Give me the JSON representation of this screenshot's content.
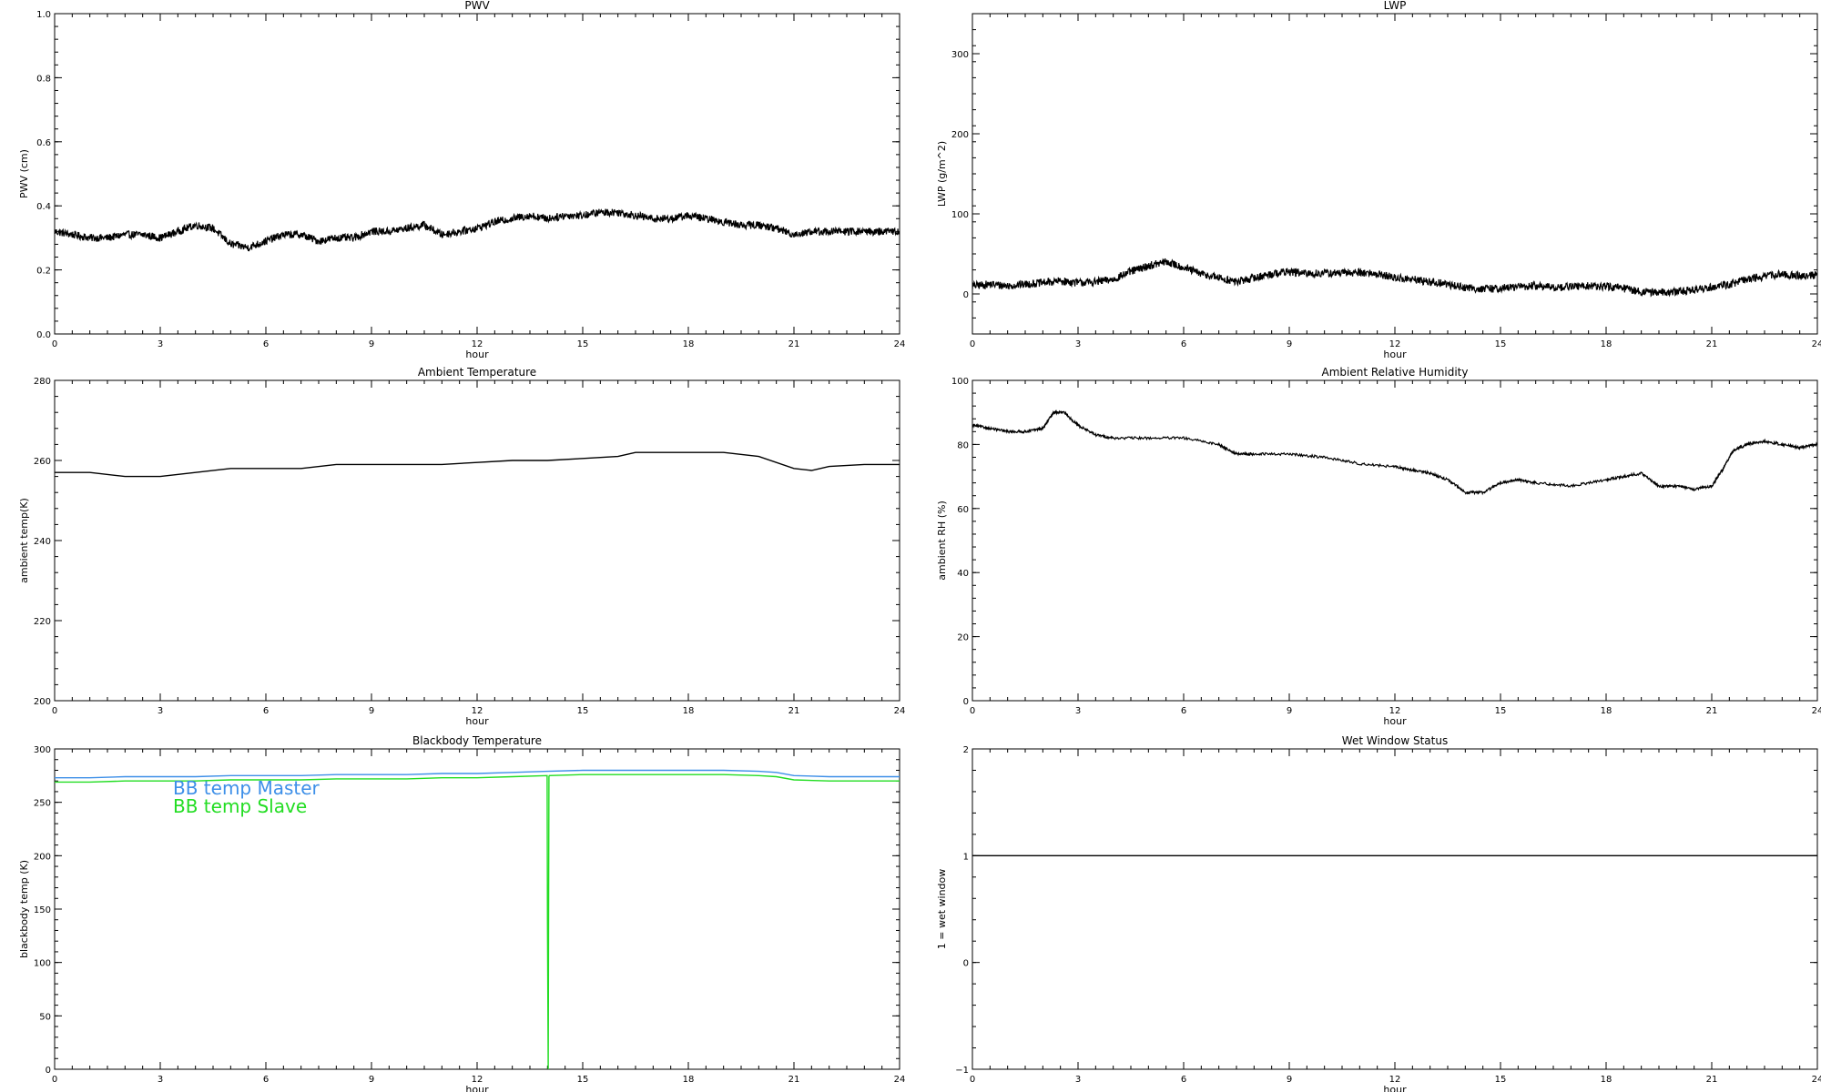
{
  "chart_data": [
    {
      "type": "line",
      "title": "PWV",
      "xlabel": "hour",
      "ylabel": "PWV (cm)",
      "xlim": [
        0,
        24
      ],
      "ylim": [
        0.0,
        1.0
      ],
      "xticks": [
        "0",
        "3",
        "6",
        "9",
        "12",
        "15",
        "18",
        "21",
        "24"
      ],
      "yticks": [
        "0.0",
        "0.2",
        "0.4",
        "0.6",
        "0.8",
        "1.0"
      ],
      "color": "#000000",
      "grid": false,
      "series": [
        {
          "x": [
            0,
            0.5,
            1,
            1.5,
            2,
            2.5,
            3,
            3.5,
            4,
            4.5,
            5,
            5.5,
            6,
            6.5,
            7,
            7.5,
            8,
            8.5,
            9,
            9.5,
            10,
            10.5,
            11,
            11.5,
            12,
            12.5,
            13,
            13.5,
            14,
            14.5,
            15,
            15.5,
            16,
            16.5,
            17,
            17.5,
            18,
            18.5,
            19,
            19.5,
            20,
            20.5,
            21,
            21.5,
            22,
            22.5,
            23,
            23.5,
            24
          ],
          "values": [
            0.32,
            0.31,
            0.3,
            0.3,
            0.31,
            0.31,
            0.3,
            0.32,
            0.34,
            0.33,
            0.28,
            0.27,
            0.29,
            0.31,
            0.31,
            0.29,
            0.3,
            0.3,
            0.32,
            0.32,
            0.33,
            0.34,
            0.31,
            0.32,
            0.33,
            0.35,
            0.36,
            0.37,
            0.36,
            0.37,
            0.37,
            0.38,
            0.38,
            0.37,
            0.36,
            0.36,
            0.37,
            0.36,
            0.35,
            0.34,
            0.34,
            0.33,
            0.31,
            0.32,
            0.32,
            0.32,
            0.32,
            0.32,
            0.32
          ]
        }
      ]
    },
    {
      "type": "line",
      "title": "LWP",
      "xlabel": "hour",
      "ylabel": "LWP (g/m^2)",
      "xlim": [
        0,
        24
      ],
      "ylim": [
        -50,
        350
      ],
      "xticks": [
        "0",
        "3",
        "6",
        "9",
        "12",
        "15",
        "18",
        "21",
        "24"
      ],
      "yticks": [
        "0",
        "100",
        "200",
        "300"
      ],
      "color": "#000000",
      "grid": false,
      "series": [
        {
          "x": [
            0,
            0.5,
            1,
            1.5,
            2,
            2.5,
            3,
            3.5,
            4,
            4.5,
            5,
            5.5,
            6,
            6.5,
            7,
            7.5,
            8,
            8.5,
            9,
            9.5,
            10,
            10.5,
            11,
            11.5,
            12,
            12.5,
            13,
            13.5,
            14,
            14.5,
            15,
            15.5,
            16,
            16.5,
            17,
            17.5,
            18,
            18.5,
            19,
            19.5,
            20,
            20.5,
            21,
            21.5,
            22,
            22.5,
            23,
            23.5,
            24
          ],
          "values": [
            10,
            12,
            10,
            12,
            14,
            16,
            14,
            15,
            18,
            28,
            35,
            40,
            33,
            25,
            20,
            15,
            20,
            25,
            28,
            25,
            26,
            26,
            27,
            25,
            20,
            18,
            15,
            12,
            8,
            6,
            7,
            9,
            10,
            8,
            9,
            10,
            9,
            7,
            3,
            2,
            3,
            5,
            9,
            12,
            18,
            22,
            25,
            22,
            24
          ]
        }
      ]
    },
    {
      "type": "line",
      "title": "Ambient Temperature",
      "xlabel": "hour",
      "ylabel": "ambient temp(K)",
      "xlim": [
        0,
        24
      ],
      "ylim": [
        200,
        280
      ],
      "xticks": [
        "0",
        "3",
        "6",
        "9",
        "12",
        "15",
        "18",
        "21",
        "24"
      ],
      "yticks": [
        "200",
        "220",
        "240",
        "260",
        "280"
      ],
      "color": "#000000",
      "grid": false,
      "series": [
        {
          "x": [
            0,
            1,
            2,
            3,
            4,
            5,
            6,
            7,
            8,
            9,
            10,
            11,
            12,
            13,
            14,
            15,
            16,
            16.5,
            17,
            18,
            19,
            20,
            21,
            21.5,
            22,
            23,
            24
          ],
          "values": [
            257,
            257,
            256,
            256,
            257,
            258,
            258,
            258,
            259,
            259,
            259,
            259,
            259.5,
            260,
            260,
            260.5,
            261,
            262,
            262,
            262,
            262,
            261,
            258,
            257.5,
            258.5,
            259,
            259
          ]
        }
      ]
    },
    {
      "type": "line",
      "title": "Ambient Relative Humidity",
      "xlabel": "hour",
      "ylabel": "ambient RH (%)",
      "xlim": [
        0,
        24
      ],
      "ylim": [
        0,
        100
      ],
      "xticks": [
        "0",
        "3",
        "6",
        "9",
        "12",
        "15",
        "18",
        "21",
        "24"
      ],
      "yticks": [
        "0",
        "20",
        "40",
        "60",
        "80",
        "100"
      ],
      "color": "#000000",
      "grid": false,
      "series": [
        {
          "x": [
            0,
            0.5,
            1,
            1.5,
            2,
            2.3,
            2.6,
            3,
            3.5,
            4,
            5,
            6,
            7,
            7.5,
            8,
            9,
            10,
            11,
            12,
            12.5,
            13,
            13.5,
            14,
            14.5,
            15,
            15.5,
            16,
            17,
            18,
            18.5,
            19,
            19.5,
            20,
            20.5,
            21,
            21.3,
            21.6,
            22,
            22.5,
            23,
            23.5,
            24
          ],
          "values": [
            86,
            85,
            84,
            84,
            85,
            90,
            90,
            86,
            83,
            82,
            82,
            82,
            80,
            77,
            77,
            77,
            76,
            74,
            73,
            72,
            71,
            69,
            65,
            65,
            68,
            69,
            68,
            67,
            69,
            70,
            71,
            67,
            67,
            66,
            67,
            72,
            78,
            80,
            81,
            80,
            79,
            80
          ]
        }
      ]
    },
    {
      "type": "line",
      "title": "Blackbody Temperature",
      "xlabel": "hour",
      "ylabel": "blackbody temp (K)",
      "xlim": [
        0,
        24
      ],
      "ylim": [
        0,
        300
      ],
      "xticks": [
        "0",
        "3",
        "6",
        "9",
        "12",
        "15",
        "18",
        "21",
        "24"
      ],
      "yticks": [
        "0",
        "50",
        "100",
        "150",
        "200",
        "250",
        "300"
      ],
      "grid": false,
      "legend_position": "top-left",
      "series": [
        {
          "name": "BB temp Master",
          "color": "#3d8fe8",
          "x": [
            0,
            1,
            2,
            3,
            4,
            5,
            6,
            7,
            8,
            9,
            10,
            11,
            12,
            13,
            14,
            15,
            16,
            17,
            18,
            19,
            20,
            20.5,
            21,
            22,
            23,
            24
          ],
          "values": [
            273,
            273,
            274,
            274,
            274,
            275,
            275,
            275,
            276,
            276,
            276,
            277,
            277,
            278,
            279,
            280,
            280,
            280,
            280,
            280,
            279,
            278,
            275,
            274,
            274,
            274
          ]
        },
        {
          "name": "BB temp Slave",
          "color": "#22dd22",
          "x": [
            0,
            1,
            2,
            3,
            4,
            5,
            6,
            7,
            8,
            9,
            10,
            11,
            12,
            13,
            13.99,
            14.0,
            14.02,
            14.04,
            14.05,
            15,
            16,
            17,
            18,
            19,
            20,
            20.5,
            21,
            22,
            23,
            24
          ],
          "values": [
            269,
            269,
            270,
            270,
            270,
            271,
            271,
            271,
            272,
            272,
            272,
            273,
            273,
            274,
            275,
            137,
            0,
            274,
            275,
            276,
            276,
            276,
            276,
            276,
            275,
            274,
            271,
            270,
            270,
            270
          ]
        }
      ]
    },
    {
      "type": "line",
      "title": "Wet Window Status",
      "xlabel": "hour",
      "ylabel": "1 = wet window",
      "xlim": [
        0,
        24
      ],
      "ylim": [
        -1,
        2
      ],
      "xticks": [
        "0",
        "3",
        "6",
        "9",
        "12",
        "15",
        "18",
        "21",
        "24"
      ],
      "yticks": [
        "−1",
        "0",
        "1",
        "2"
      ],
      "color": "#000000",
      "grid": false,
      "series": [
        {
          "x": [
            0,
            24
          ],
          "values": [
            1,
            1
          ]
        }
      ]
    }
  ]
}
